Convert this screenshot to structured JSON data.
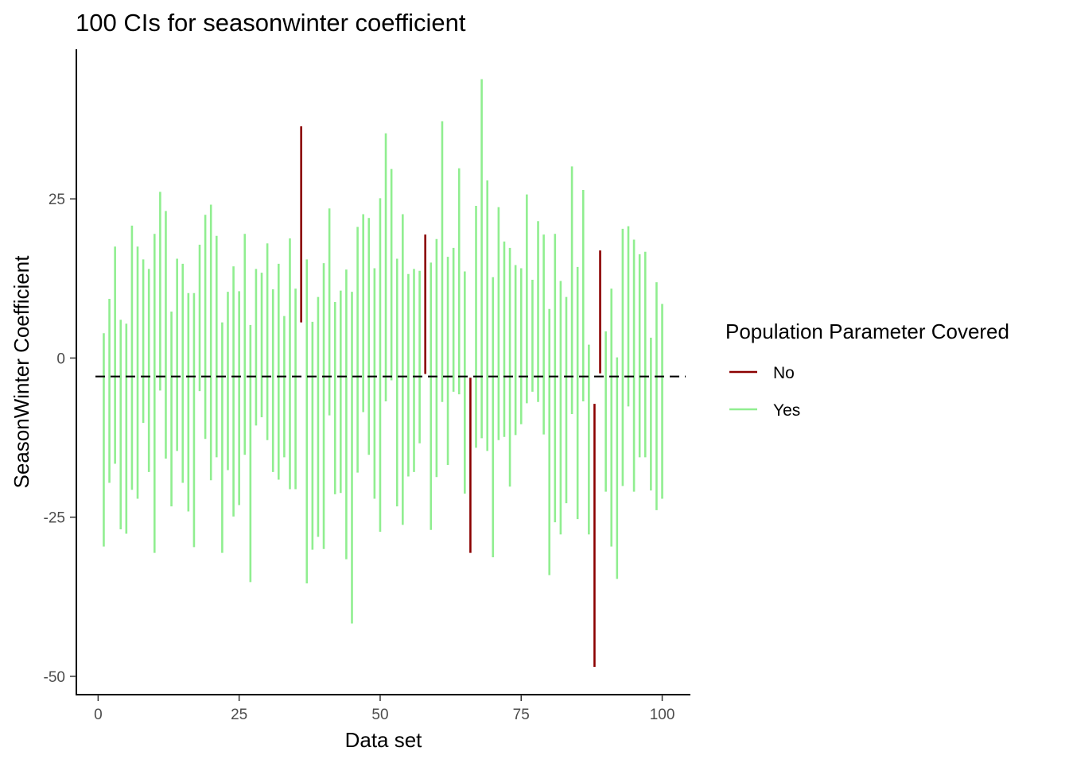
{
  "chart_data": {
    "type": "errorbar",
    "title": "100 CIs for seasonwinter coefficient",
    "xlabel": "Data set",
    "ylabel": "SeasonWinter Coefficient",
    "xlim": [
      -4,
      105
    ],
    "ylim": [
      -53,
      48.5
    ],
    "x_ticks": [
      0,
      25,
      50,
      75,
      100
    ],
    "x_tick_labels": [
      "0",
      "25",
      "50",
      "75",
      "100"
    ],
    "y_ticks": [
      25,
      0,
      -25,
      -50
    ],
    "y_tick_labels": [
      "25",
      "0",
      "-25",
      "-50"
    ],
    "reference_line": {
      "value": -2.9,
      "style": "dashed",
      "color": "#000000"
    },
    "legend": {
      "title": "Population Parameter Covered",
      "placement": "right",
      "entries": [
        {
          "label": "No",
          "color": "#8B0000"
        },
        {
          "label": "Yes",
          "color": "#90EE90"
        }
      ]
    },
    "colors": {
      "No": "#8B0000",
      "Yes": "#90EE90"
    },
    "intervals": [
      [
        1,
        -29.6,
        3.9
      ],
      [
        2,
        -19.6,
        9.3
      ],
      [
        3,
        -16.6,
        17.5
      ],
      [
        4,
        -26.9,
        6.0
      ],
      [
        5,
        -27.6,
        5.4
      ],
      [
        6,
        -20.7,
        20.8
      ],
      [
        7,
        -22.1,
        17.5
      ],
      [
        8,
        -10.2,
        15.5
      ],
      [
        9,
        -17.9,
        14.0
      ],
      [
        10,
        -30.6,
        19.5
      ],
      [
        11,
        -5.1,
        26.1
      ],
      [
        12,
        -15.8,
        23.1
      ],
      [
        13,
        -23.3,
        7.3
      ],
      [
        14,
        -14.6,
        15.6
      ],
      [
        15,
        -19.6,
        14.8
      ],
      [
        16,
        -24.1,
        10.2
      ],
      [
        17,
        -29.7,
        10.2
      ],
      [
        18,
        -5.2,
        17.8
      ],
      [
        19,
        -12.7,
        22.5
      ],
      [
        20,
        -19.2,
        24.1
      ],
      [
        21,
        -15.6,
        19.2
      ],
      [
        22,
        -30.6,
        5.6
      ],
      [
        23,
        -17.6,
        10.4
      ],
      [
        24,
        -24.9,
        14.4
      ],
      [
        25,
        -23.1,
        10.5
      ],
      [
        26,
        -15.2,
        19.5
      ],
      [
        27,
        -35.2,
        5.2
      ],
      [
        28,
        -10.6,
        14.0
      ],
      [
        29,
        -9.3,
        13.4
      ],
      [
        30,
        -12.9,
        18.0
      ],
      [
        31,
        -17.9,
        10.8
      ],
      [
        32,
        -19.1,
        14.8
      ],
      [
        33,
        -15.6,
        6.6
      ],
      [
        34,
        -20.6,
        18.8
      ],
      [
        35,
        -20.6,
        10.9
      ],
      [
        36,
        5.6,
        36.4
      ],
      [
        37,
        -35.4,
        15.5
      ],
      [
        38,
        -30.1,
        5.7
      ],
      [
        39,
        -28.1,
        9.6
      ],
      [
        40,
        -30.0,
        14.9
      ],
      [
        41,
        -9.0,
        23.5
      ],
      [
        42,
        -21.4,
        8.8
      ],
      [
        43,
        -21.2,
        10.6
      ],
      [
        44,
        -31.6,
        13.9
      ],
      [
        45,
        -41.7,
        10.4
      ],
      [
        46,
        -18.0,
        20.6
      ],
      [
        47,
        -8.5,
        22.6
      ],
      [
        48,
        -15.2,
        22.0
      ],
      [
        49,
        -22.1,
        14.1
      ],
      [
        50,
        -27.3,
        25.1
      ],
      [
        51,
        -6.8,
        35.3
      ],
      [
        52,
        -3.5,
        29.7
      ],
      [
        53,
        -23.3,
        15.6
      ],
      [
        54,
        -26.2,
        22.6
      ],
      [
        55,
        -18.6,
        13.2
      ],
      [
        56,
        -17.9,
        14.0
      ],
      [
        57,
        -13.4,
        13.7
      ],
      [
        58,
        -2.5,
        19.4
      ],
      [
        59,
        -27.0,
        15.0
      ],
      [
        60,
        -18.7,
        18.7
      ],
      [
        61,
        -6.9,
        37.2
      ],
      [
        62,
        -16.8,
        15.9
      ],
      [
        63,
        -5.3,
        17.3
      ],
      [
        64,
        -5.7,
        29.8
      ],
      [
        65,
        -21.3,
        13.6
      ],
      [
        66,
        -30.6,
        -3.1
      ],
      [
        67,
        -14.1,
        23.9
      ],
      [
        68,
        -12.6,
        43.8
      ],
      [
        69,
        -14.6,
        27.9
      ],
      [
        70,
        -31.3,
        12.7
      ],
      [
        71,
        -12.9,
        23.7
      ],
      [
        72,
        -12.4,
        18.3
      ],
      [
        73,
        -20.2,
        17.3
      ],
      [
        74,
        -12.1,
        14.6
      ],
      [
        75,
        -10.4,
        14.1
      ],
      [
        76,
        -7.1,
        25.7
      ],
      [
        77,
        -5.3,
        12.3
      ],
      [
        78,
        -6.9,
        21.5
      ],
      [
        79,
        -12.0,
        19.4
      ],
      [
        80,
        -34.1,
        7.7
      ],
      [
        81,
        -25.8,
        19.5
      ],
      [
        82,
        -27.7,
        12.1
      ],
      [
        83,
        -22.8,
        9.6
      ],
      [
        84,
        -8.8,
        30.1
      ],
      [
        85,
        -25.3,
        14.3
      ],
      [
        86,
        -6.8,
        26.4
      ],
      [
        87,
        -27.7,
        2.1
      ],
      [
        88,
        -48.5,
        -7.2
      ],
      [
        89,
        -2.4,
        16.9
      ],
      [
        90,
        -21.0,
        4.2
      ],
      [
        91,
        -29.6,
        10.9
      ],
      [
        92,
        -34.7,
        0.1
      ],
      [
        93,
        -20.1,
        20.3
      ],
      [
        94,
        -7.6,
        20.7
      ],
      [
        95,
        -21.0,
        18.6
      ],
      [
        96,
        -15.6,
        16.3
      ],
      [
        97,
        -15.6,
        16.7
      ],
      [
        98,
        -20.8,
        3.2
      ],
      [
        99,
        -23.9,
        11.9
      ],
      [
        100,
        -22.1,
        8.5
      ]
    ]
  }
}
